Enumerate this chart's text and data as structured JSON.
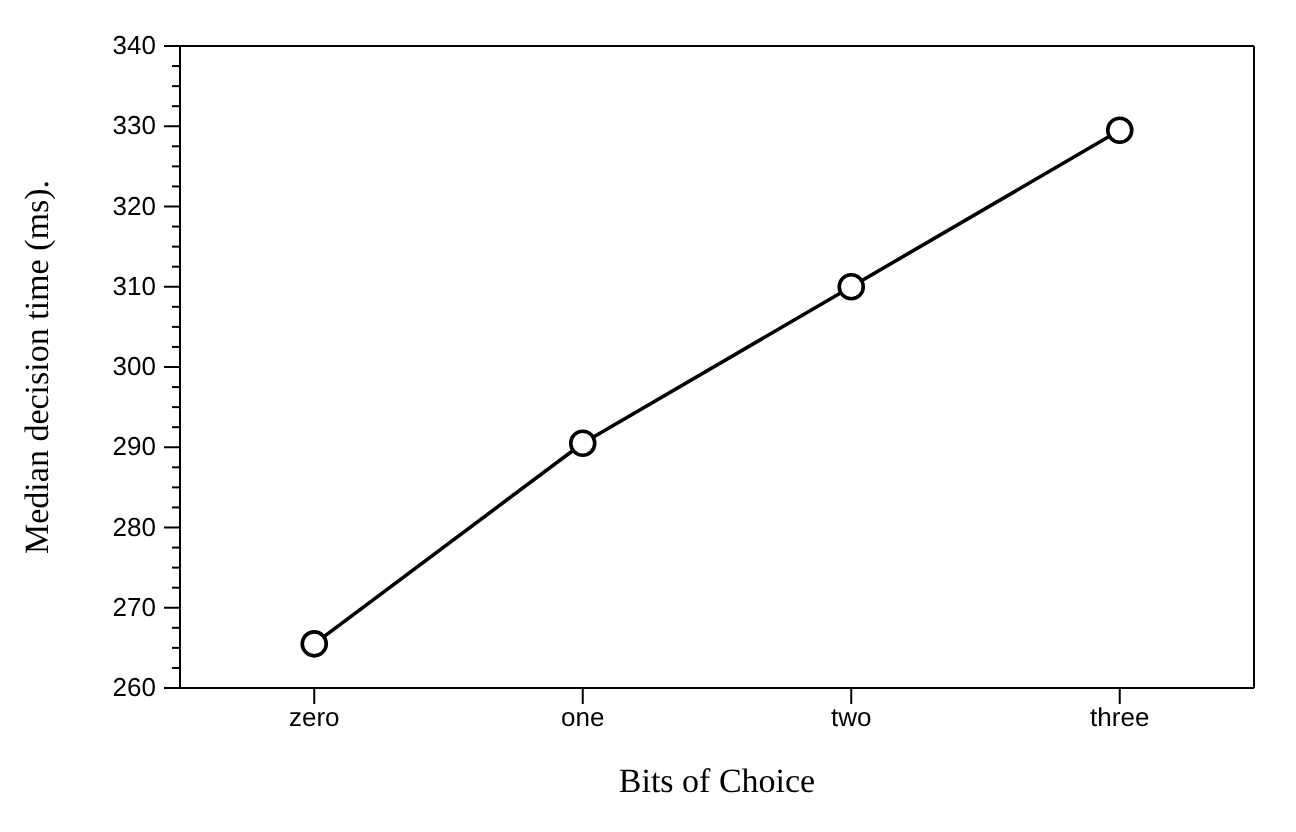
{
  "chart_data": {
    "type": "line",
    "xlabel": "Bits of Choice",
    "ylabel": "Median decision time (ms).",
    "categories": [
      "zero",
      "one",
      "two",
      "three"
    ],
    "series": [
      {
        "color": "#000000",
        "values": [
          265.5,
          290.5,
          310,
          329.5
        ]
      }
    ],
    "ylim": [
      260,
      340
    ],
    "yticks": [
      260,
      {
        "value": 262.5,
        "label": null
      },
      {
        "value": 265,
        "label": null
      },
      {
        "value": 267.5,
        "label": null
      },
      270,
      {
        "value": 272.5,
        "label": null
      },
      {
        "value": 275,
        "label": null
      },
      {
        "value": 277.5,
        "label": null
      },
      280,
      {
        "value": 282.5,
        "label": null
      },
      {
        "value": 285,
        "label": null
      },
      {
        "value": 287.5,
        "label": null
      },
      290,
      {
        "value": 292.5,
        "label": null
      },
      {
        "value": 295,
        "label": null
      },
      {
        "value": 297.5,
        "label": null
      },
      300,
      {
        "value": 302.5,
        "label": null
      },
      {
        "value": 305,
        "label": null
      },
      {
        "value": 307.5,
        "label": null
      },
      310,
      {
        "value": 312.5,
        "label": null
      },
      {
        "value": 315,
        "label": null
      },
      {
        "value": 317.5,
        "label": null
      },
      320,
      {
        "value": 322.5,
        "label": null
      },
      {
        "value": 325,
        "label": null
      },
      {
        "value": 327.5,
        "label": null
      },
      330,
      {
        "value": 332.5,
        "label": null
      },
      {
        "value": 335,
        "label": null
      },
      {
        "value": 337.5,
        "label": null
      },
      340
    ],
    "marker": "circle",
    "line_style": "solid"
  }
}
